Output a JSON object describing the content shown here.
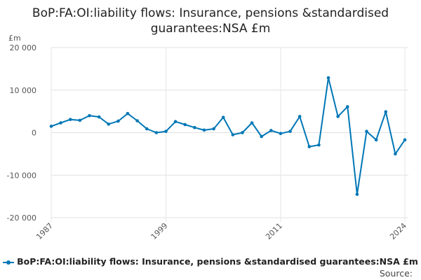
{
  "chart_data": {
    "type": "line",
    "title_line1": "BoP:FA:OI:liability flows: Insurance, pensions &standardised",
    "title_line2": "guarantees:NSA £m",
    "ylabel": "£m",
    "ylim": [
      -20000,
      20000
    ],
    "yticks": [
      20000,
      10000,
      0,
      -10000,
      -20000
    ],
    "ytick_labels": [
      "20 000",
      "10 000",
      "0",
      "-10 000",
      "-20 000"
    ],
    "xlim": [
      1987,
      2024
    ],
    "xticks": [
      1987,
      1999,
      2011,
      2024
    ],
    "xtick_labels": [
      "1987",
      "1999",
      "2011",
      "2024"
    ],
    "grid": true,
    "color": "#0077b6",
    "series": [
      {
        "name": "BoP:FA:OI:liability flows: Insurance, pensions &standardised guarantees:NSA £m",
        "x": [
          1987,
          1988,
          1989,
          1990,
          1991,
          1992,
          1993,
          1994,
          1995,
          1996,
          1997,
          1998,
          1999,
          2000,
          2001,
          2002,
          2003,
          2004,
          2005,
          2006,
          2007,
          2008,
          2009,
          2010,
          2011,
          2012,
          2013,
          2014,
          2015,
          2016,
          2017,
          2018,
          2019,
          2020,
          2021,
          2022,
          2023,
          2024
        ],
        "values": [
          1500,
          2300,
          3100,
          2900,
          4000,
          3700,
          2000,
          2700,
          4500,
          2800,
          900,
          0,
          300,
          2600,
          1900,
          1200,
          600,
          900,
          3600,
          -500,
          0,
          2300,
          -900,
          500,
          -200,
          300,
          3800,
          -3300,
          -2900,
          12900,
          3800,
          6100,
          -14500,
          300,
          -1700,
          4900,
          -5000,
          -1700
        ]
      }
    ],
    "legend_label": "BoP:FA:OI:liability flows: Insurance, pensions &standardised guarantees:NSA £m",
    "legend_position": "bottom",
    "source_label": "Source:"
  }
}
